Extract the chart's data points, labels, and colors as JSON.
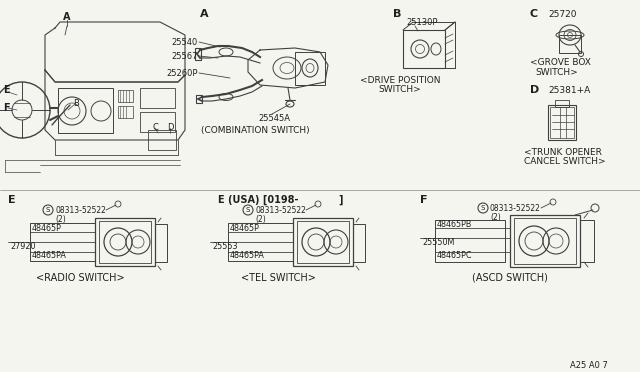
{
  "bg_color": "#f5f5f0",
  "line_color": "#404040",
  "text_color": "#202020",
  "page_num": "A25 A0 7",
  "comb_parts": [
    "25540",
    "25567",
    "25260P",
    "25545A"
  ],
  "comb_caption": "(COMBINATION SWITCH)",
  "comb_label": "A",
  "drive_part": "25130P",
  "drive_caption_1": "<DRIVE POSITION",
  "drive_caption_2": "SWITCH>",
  "drive_label": "B",
  "grove_part": "25720",
  "grove_caption_1": "<GROVE BOX",
  "grove_caption_2": "SWITCH>",
  "grove_label": "C",
  "trunk_part": "25381+A",
  "trunk_caption_1": "<TRUNK OPENER",
  "trunk_caption_2": "CANCEL SWITCH>",
  "trunk_label": "D",
  "radio_label": "E",
  "radio_screw": "08313-52522",
  "radio_screw_qty": "(2)",
  "radio_parts": [
    "48465P",
    "27920",
    "48465PA"
  ],
  "radio_caption": "<RADIO SWITCH>",
  "tel_label": "E (USA) [0198-",
  "tel_label2": "]",
  "tel_screw": "08313-52522",
  "tel_screw_qty": "(2)",
  "tel_parts": [
    "48465P",
    "25553",
    "48465PA"
  ],
  "tel_caption": "<TEL SWITCH>",
  "ascd_label": "F",
  "ascd_screw": "08313-52522",
  "ascd_screw_qty": "(2)",
  "ascd_parts": [
    "48465PB",
    "25550M",
    "48465PC"
  ],
  "ascd_caption": "(ASCD SWITCH)"
}
